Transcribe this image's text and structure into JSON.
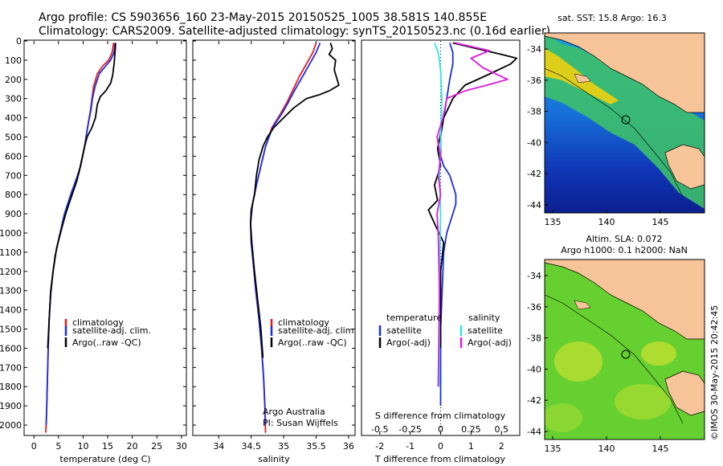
{
  "header": {
    "line1": "Argo profile: CS 5903656_160 23-May-2015 20150525_1005 38.581S 140.855E",
    "line2": "Climatology: CARS2009. Satellite-adjusted climatology: synTS_20150523.nc (0.16d earlier)"
  },
  "colors": {
    "climatology": "#e8191d",
    "satellite_adj": "#1a2fe0",
    "argo": "#000000",
    "sat_S": "#2ee6e6",
    "argo_S": "#e01ae0",
    "land": "#f7c49a"
  },
  "chart_data": [
    {
      "type": "line",
      "id": "temperature",
      "xlabel": "temperature (deg C)",
      "xlim": [
        -2,
        31
      ],
      "ylim": [
        0,
        2050
      ],
      "y_reversed": true,
      "xticks": [
        0,
        5,
        10,
        15,
        20,
        25,
        30
      ],
      "yticks": [
        0,
        100,
        200,
        300,
        400,
        500,
        600,
        700,
        800,
        900,
        1000,
        1100,
        1200,
        1300,
        1400,
        1500,
        1600,
        1700,
        1800,
        1900,
        2000
      ],
      "legend": [
        "climatology",
        "satellite-adj. clim.",
        "Argo(..raw -QC)"
      ],
      "series": [
        {
          "name": "climatology",
          "color_key": "climatology",
          "points": [
            [
              16.2,
              10
            ],
            [
              15.9,
              60
            ],
            [
              15.2,
              100
            ],
            [
              14.0,
              130
            ],
            [
              12.9,
              170
            ],
            [
              12.1,
              240
            ],
            [
              11.8,
              300
            ],
            [
              11.5,
              360
            ],
            [
              10.9,
              450
            ],
            [
              10.3,
              550
            ],
            [
              9.5,
              650
            ],
            [
              8.7,
              720
            ],
            [
              7.7,
              790
            ],
            [
              6.9,
              860
            ],
            [
              6.4,
              900
            ],
            [
              5.6,
              980
            ],
            [
              4.6,
              1080
            ],
            [
              3.9,
              1200
            ],
            [
              3.4,
              1300
            ],
            [
              3.1,
              1450
            ],
            [
              2.9,
              1600
            ],
            [
              2.7,
              1800
            ],
            [
              2.6,
              1900
            ],
            [
              2.5,
              2000
            ],
            [
              2.4,
              2040
            ]
          ]
        },
        {
          "name": "satellite-adj. clim.",
          "color_key": "satellite_adj",
          "points": [
            [
              16.5,
              10
            ],
            [
              16.3,
              60
            ],
            [
              15.6,
              100
            ],
            [
              14.6,
              130
            ],
            [
              13.3,
              170
            ],
            [
              12.4,
              240
            ],
            [
              11.9,
              300
            ],
            [
              11.6,
              360
            ],
            [
              10.9,
              450
            ],
            [
              10.3,
              550
            ],
            [
              9.5,
              650
            ],
            [
              8.6,
              720
            ],
            [
              7.6,
              790
            ],
            [
              6.7,
              860
            ],
            [
              6.2,
              900
            ],
            [
              5.5,
              980
            ],
            [
              4.6,
              1080
            ],
            [
              3.9,
              1200
            ],
            [
              3.4,
              1300
            ],
            [
              3.1,
              1450
            ],
            [
              2.9,
              1600
            ],
            [
              2.7,
              1800
            ],
            [
              2.6,
              1900
            ],
            [
              2.5,
              2000
            ]
          ]
        },
        {
          "name": "Argo(..raw -QC)",
          "color_key": "argo",
          "points": [
            [
              16.6,
              10
            ],
            [
              16.5,
              60
            ],
            [
              16.3,
              120
            ],
            [
              16.0,
              180
            ],
            [
              15.6,
              220
            ],
            [
              14.6,
              260
            ],
            [
              13.5,
              290
            ],
            [
              12.9,
              330
            ],
            [
              12.5,
              400
            ],
            [
              11.8,
              450
            ],
            [
              10.8,
              500
            ],
            [
              10.3,
              550
            ],
            [
              9.7,
              620
            ],
            [
              9.2,
              680
            ],
            [
              8.7,
              730
            ],
            [
              7.9,
              790
            ],
            [
              7.1,
              850
            ],
            [
              6.6,
              890
            ],
            [
              5.9,
              950
            ],
            [
              5.0,
              1040
            ],
            [
              4.3,
              1120
            ],
            [
              3.8,
              1220
            ],
            [
              3.4,
              1320
            ],
            [
              3.1,
              1450
            ],
            [
              2.8,
              1600
            ]
          ]
        }
      ]
    },
    {
      "type": "line",
      "id": "salinity",
      "xlabel": "salinity",
      "xlim": [
        33.6,
        36.1
      ],
      "ylim": [
        0,
        2050
      ],
      "y_reversed": true,
      "xticks": [
        34,
        34.5,
        35,
        35.5,
        36
      ],
      "legend": [
        "climatology",
        "satellite-adj. clim.",
        "Argo(..raw -QC)"
      ],
      "annotation": [
        "Argo Australia",
        "PI: Susan Wijffels"
      ],
      "series": [
        {
          "name": "climatology",
          "color_key": "climatology",
          "points": [
            [
              35.5,
              10
            ],
            [
              35.45,
              60
            ],
            [
              35.35,
              120
            ],
            [
              35.25,
              180
            ],
            [
              35.15,
              250
            ],
            [
              35.05,
              320
            ],
            [
              34.95,
              380
            ],
            [
              34.82,
              450
            ],
            [
              34.72,
              550
            ],
            [
              34.65,
              650
            ],
            [
              34.58,
              750
            ],
            [
              34.52,
              850
            ],
            [
              34.49,
              950
            ],
            [
              34.5,
              1050
            ],
            [
              34.53,
              1150
            ],
            [
              34.57,
              1300
            ],
            [
              34.62,
              1450
            ],
            [
              34.66,
              1600
            ],
            [
              34.69,
              1750
            ],
            [
              34.71,
              1900
            ],
            [
              34.72,
              2040
            ]
          ]
        },
        {
          "name": "satellite-adj. clim.",
          "color_key": "satellite_adj",
          "points": [
            [
              35.56,
              10
            ],
            [
              35.5,
              60
            ],
            [
              35.4,
              120
            ],
            [
              35.3,
              180
            ],
            [
              35.18,
              250
            ],
            [
              35.07,
              320
            ],
            [
              34.97,
              380
            ],
            [
              34.83,
              450
            ],
            [
              34.72,
              550
            ],
            [
              34.65,
              650
            ],
            [
              34.58,
              750
            ],
            [
              34.52,
              850
            ],
            [
              34.49,
              950
            ],
            [
              34.5,
              1050
            ],
            [
              34.53,
              1150
            ],
            [
              34.57,
              1300
            ],
            [
              34.62,
              1450
            ],
            [
              34.66,
              1600
            ],
            [
              34.69,
              1750
            ],
            [
              34.71,
              1900
            ],
            [
              34.72,
              2000
            ]
          ]
        },
        {
          "name": "Argo(..raw -QC)",
          "color_key": "argo",
          "points": [
            [
              35.72,
              10
            ],
            [
              35.75,
              40
            ],
            [
              35.7,
              70
            ],
            [
              35.8,
              100
            ],
            [
              35.78,
              150
            ],
            [
              35.85,
              230
            ],
            [
              35.7,
              260
            ],
            [
              35.55,
              280
            ],
            [
              35.35,
              300
            ],
            [
              35.15,
              350
            ],
            [
              35.0,
              400
            ],
            [
              34.85,
              450
            ],
            [
              34.75,
              500
            ],
            [
              34.68,
              550
            ],
            [
              34.62,
              620
            ],
            [
              34.58,
              700
            ],
            [
              34.55,
              800
            ],
            [
              34.5,
              880
            ],
            [
              34.49,
              950
            ],
            [
              34.51,
              1050
            ],
            [
              34.55,
              1200
            ],
            [
              34.6,
              1350
            ],
            [
              34.65,
              1500
            ],
            [
              34.68,
              1650
            ]
          ]
        }
      ]
    },
    {
      "type": "line",
      "id": "difference",
      "xlabel": "T difference from climatology",
      "xlabel_top": "S difference from climatology",
      "xlim": [
        -2.6,
        2.6
      ],
      "ylim": [
        0,
        2050
      ],
      "y_reversed": true,
      "xticks_T": [
        -2,
        -1,
        0,
        1,
        2
      ],
      "xticks_S": [
        "-0.5",
        "-0.25",
        "0",
        "0.25",
        "0.5"
      ],
      "legend_titles": [
        "temperature",
        "salinity"
      ],
      "legend_T": [
        "satellite",
        "Argo(-adj)"
      ],
      "legend_S": [
        "satellite",
        "Argo(-adj)"
      ],
      "series": [
        {
          "name": "T satellite",
          "color_key": "satellite_adj",
          "points": [
            [
              0.3,
              10
            ],
            [
              0.4,
              60
            ],
            [
              0.4,
              120
            ],
            [
              0.3,
              200
            ],
            [
              0.2,
              300
            ],
            [
              0.1,
              400
            ],
            [
              0.0,
              500
            ],
            [
              0.0,
              600
            ],
            [
              0.1,
              650
            ],
            [
              0.3,
              700
            ],
            [
              0.4,
              750
            ],
            [
              0.5,
              800
            ],
            [
              0.5,
              850
            ],
            [
              0.4,
              900
            ],
            [
              0.3,
              950
            ],
            [
              0.2,
              1000
            ],
            [
              0.1,
              1100
            ],
            [
              0.05,
              1300
            ],
            [
              0.0,
              1500
            ],
            [
              0.0,
              1900
            ]
          ]
        },
        {
          "name": "T Argo(-adj)",
          "color_key": "argo",
          "points": [
            [
              0.4,
              10
            ],
            [
              1.2,
              40
            ],
            [
              2.0,
              70
            ],
            [
              2.5,
              90
            ],
            [
              2.3,
              120
            ],
            [
              1.5,
              180
            ],
            [
              0.8,
              230
            ],
            [
              0.4,
              300
            ],
            [
              0.1,
              400
            ],
            [
              0.0,
              480
            ],
            [
              -0.1,
              560
            ],
            [
              0.0,
              650
            ],
            [
              -0.2,
              750
            ],
            [
              -0.1,
              830
            ],
            [
              -0.4,
              880
            ],
            [
              -0.2,
              950
            ],
            [
              0.1,
              1050
            ],
            [
              0.0,
              1200
            ],
            [
              0.0,
              1600
            ]
          ]
        },
        {
          "name": "S satellite",
          "color_key": "sat_S",
          "points": [
            [
              -0.05,
              10
            ],
            [
              -0.02,
              60
            ],
            [
              0.0,
              150
            ],
            [
              0.01,
              300
            ],
            [
              0.0,
              500
            ],
            [
              -0.01,
              700
            ],
            [
              0.0,
              900
            ],
            [
              -0.01,
              1200
            ],
            [
              -0.01,
              1500
            ],
            [
              -0.01,
              1800
            ]
          ]
        },
        {
          "name": "S Argo(-adj)",
          "color_key": "argo_S",
          "points": [
            [
              0.12,
              10
            ],
            [
              0.4,
              50
            ],
            [
              0.25,
              90
            ],
            [
              0.35,
              140
            ],
            [
              0.55,
              200
            ],
            [
              0.38,
              230
            ],
            [
              0.2,
              260
            ],
            [
              0.05,
              300
            ],
            [
              0.02,
              400
            ],
            [
              -0.03,
              500
            ],
            [
              0.0,
              600
            ],
            [
              -0.02,
              700
            ],
            [
              0.0,
              800
            ],
            [
              -0.03,
              900
            ],
            [
              -0.02,
              1000
            ],
            [
              -0.01,
              1300
            ],
            [
              -0.02,
              1800
            ]
          ]
        }
      ]
    }
  ],
  "maps": [
    {
      "id": "sst",
      "title": "sat. SST: 15.8 Argo: 16.3",
      "lat_ticks": [
        "-34",
        "-36",
        "-38",
        "-40",
        "-42",
        "-44"
      ],
      "lon_ticks": [
        "135",
        "140",
        "145"
      ]
    },
    {
      "id": "sla",
      "title_line1": "Altim. SLA: 0.072",
      "title_line2": "Argo h1000: 0.1 h2000: NaN",
      "lat_ticks": [
        "-34",
        "-36",
        "-38",
        "-40",
        "-42",
        "-44"
      ],
      "lon_ticks": [
        "135",
        "140",
        "145"
      ]
    }
  ],
  "stamp": "©IMOS 30-May-2015 20:42:45"
}
